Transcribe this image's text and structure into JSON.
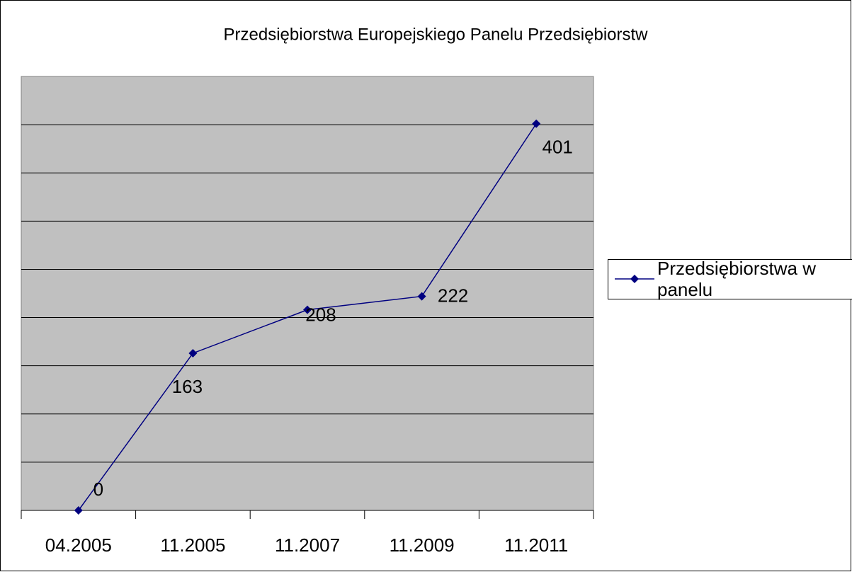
{
  "chart_data": {
    "type": "line",
    "title": "Przedsiębiorstwa Europejskiego Panelu Przedsiębiorstw",
    "categories": [
      "04.2005",
      "11.2005",
      "11.2007",
      "11.2009",
      "11.2011"
    ],
    "series": [
      {
        "name": "Przedsiębiorstwa w panelu",
        "color": "#000080",
        "values": [
          0,
          163,
          208,
          222,
          401
        ]
      }
    ],
    "ylim": [
      0,
      450
    ],
    "yticks": [
      0,
      50,
      100,
      150,
      200,
      250,
      300,
      350,
      400,
      450
    ],
    "grid": true,
    "legend": "right",
    "plot_background": "#c0c0c0"
  }
}
